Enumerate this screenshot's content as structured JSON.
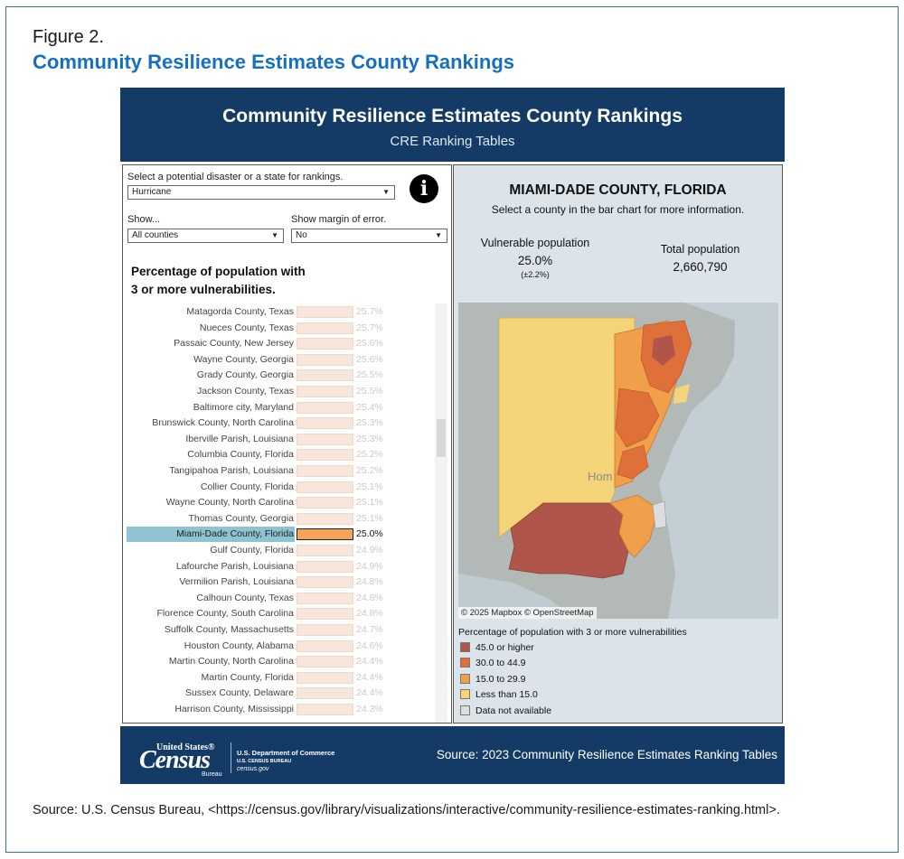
{
  "figure": {
    "label": "Figure 2.",
    "title": "Community Resilience Estimates County Rankings",
    "source": "Source: U.S. Census Bureau, <https://census.gov/library/visualizations/interactive/community-resilience-estimates-ranking.html>."
  },
  "header": {
    "title": "Community Resilience Estimates County Rankings",
    "subtitle": "CRE Ranking Tables"
  },
  "filters": {
    "disaster_label": "Select a potential disaster or a state for rankings.",
    "disaster_value": "Hurricane",
    "show_label": "Show...",
    "show_value": "All counties",
    "moe_label": "Show margin of error.",
    "moe_value": "No",
    "info_icon": "info-icon"
  },
  "ranking": {
    "title_line1": "Percentage of population with",
    "title_line2": "3 or more vulnerabilities.",
    "rows": [
      {
        "county": "Matagorda County, Texas",
        "value": "25.7%"
      },
      {
        "county": "Nueces County, Texas",
        "value": "25.7%"
      },
      {
        "county": "Passaic County, New Jersey",
        "value": "25.6%"
      },
      {
        "county": "Wayne County, Georgia",
        "value": "25.6%"
      },
      {
        "county": "Grady County, Georgia",
        "value": "25.5%"
      },
      {
        "county": "Jackson County, Texas",
        "value": "25.5%"
      },
      {
        "county": "Baltimore city, Maryland",
        "value": "25.4%"
      },
      {
        "county": "Brunswick County, North Carolina",
        "value": "25.3%"
      },
      {
        "county": "Iberville Parish, Louisiana",
        "value": "25.3%"
      },
      {
        "county": "Columbia County, Florida",
        "value": "25.2%"
      },
      {
        "county": "Tangipahoa Parish, Louisiana",
        "value": "25.2%"
      },
      {
        "county": "Collier County, Florida",
        "value": "25.1%"
      },
      {
        "county": "Wayne County, North Carolina",
        "value": "25.1%"
      },
      {
        "county": "Thomas County, Georgia",
        "value": "25.1%"
      },
      {
        "county": "Miami-Dade County, Florida",
        "value": "25.0%",
        "selected": true
      },
      {
        "county": "Gulf County, Florida",
        "value": "24.9%"
      },
      {
        "county": "Lafourche Parish, Louisiana",
        "value": "24.9%"
      },
      {
        "county": "Vermilion Parish, Louisiana",
        "value": "24.8%"
      },
      {
        "county": "Calhoun County, Texas",
        "value": "24.8%"
      },
      {
        "county": "Florence County, South Carolina",
        "value": "24.8%"
      },
      {
        "county": "Suffolk County, Massachusetts",
        "value": "24.7%"
      },
      {
        "county": "Houston County, Alabama",
        "value": "24.6%"
      },
      {
        "county": "Martin County, North Carolina",
        "value": "24.4%"
      },
      {
        "county": "Martin County, Florida",
        "value": "24.4%"
      },
      {
        "county": "Sussex County, Delaware",
        "value": "24.4%"
      },
      {
        "county": "Harrison County, Mississippi",
        "value": "24.3%"
      }
    ]
  },
  "detail": {
    "county": "MIAMI-DADE COUNTY, FLORIDA",
    "prompt": "Select a county in the bar chart for more information.",
    "vulnerable_label": "Vulnerable population",
    "vulnerable_value": "25.0%",
    "vulnerable_moe": "(±2.2%)",
    "total_label": "Total population",
    "total_value": "2,660,790"
  },
  "map": {
    "place_label": "Hom",
    "attribution": "© 2025 Mapbox  © OpenStreetMap"
  },
  "legend": {
    "title": "Percentage of population with 3 or more vulnerabilities",
    "items": [
      {
        "label": "45.0 or higher",
        "color": "#b0554a"
      },
      {
        "label": "30.0 to 44.9",
        "color": "#e0703a"
      },
      {
        "label": "15.0 to 29.9",
        "color": "#f0a04b"
      },
      {
        "label": "Less than 15.0",
        "color": "#f5d378"
      },
      {
        "label": "Data not available",
        "color": "#dddddd"
      }
    ]
  },
  "footer": {
    "logo_top": "United States®",
    "logo_main": "Census",
    "logo_bureau": "Bureau",
    "dept": "U.S. Department of Commerce",
    "bureau": "U.S. CENSUS BUREAU",
    "site": "census.gov",
    "source": "Source: 2023 Community Resilience Estimates Ranking Tables"
  }
}
